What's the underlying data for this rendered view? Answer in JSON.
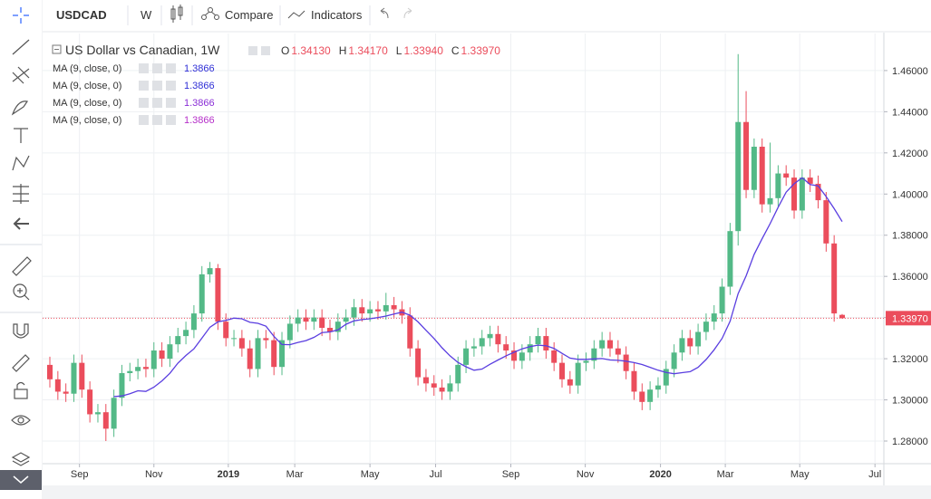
{
  "toolbar": {
    "symbol": "USDCAD",
    "interval": "W",
    "compare": "Compare",
    "indicators": "Indicators"
  },
  "chart_data": {
    "type": "candlestick",
    "title": "US Dollar vs Canadian, 1W",
    "ohlc_legend": [
      {
        "label": "O",
        "value": "1.34130"
      },
      {
        "label": "H",
        "value": "1.34170"
      },
      {
        "label": "L",
        "value": "1.33940"
      },
      {
        "label": "C",
        "value": "1.33970"
      }
    ],
    "indicators": [
      {
        "name": "MA (9, close, 0)",
        "value": "1.3866",
        "color": "#2e2ed6"
      },
      {
        "name": "MA (9, close, 0)",
        "value": "1.3866",
        "color": "#2e2ed6"
      },
      {
        "name": "MA (9, close, 0)",
        "value": "1.3866",
        "color": "#8a2ed6"
      },
      {
        "name": "MA (9, close, 0)",
        "value": "1.3866",
        "color": "#b52ec9"
      }
    ],
    "up_color": "#53b987",
    "down_color": "#eb4d5c",
    "ma_color": "#5a3ee0",
    "open": [
      1.317,
      1.31,
      1.304,
      1.303,
      1.318,
      1.305,
      1.293,
      1.294,
      1.286,
      1.301,
      1.313,
      1.314,
      1.316,
      1.315,
      1.324,
      1.32,
      1.327,
      1.331,
      1.334,
      1.342,
      1.361,
      1.364,
      1.338,
      1.33,
      1.33,
      1.325,
      1.315,
      1.33,
      1.329,
      1.316,
      1.329,
      1.337,
      1.34,
      1.338,
      1.34,
      1.335,
      1.333,
      1.338,
      1.34,
      1.345,
      1.342,
      1.344,
      1.343,
      1.346,
      1.344,
      1.341,
      1.325,
      1.311,
      1.308,
      1.306,
      1.304,
      1.308,
      1.317,
      1.325,
      1.326,
      1.33,
      1.332,
      1.327,
      1.324,
      1.319,
      1.323,
      1.327,
      1.331,
      1.324,
      1.318,
      1.31,
      1.307,
      1.318,
      1.319,
      1.325,
      1.329,
      1.325,
      1.322,
      1.314,
      1.304,
      1.299,
      1.305,
      1.307,
      1.315,
      1.323,
      1.33,
      1.326,
      1.333,
      1.338,
      1.342,
      1.355,
      1.382,
      1.435,
      1.402,
      1.423,
      1.395,
      1.398,
      1.41,
      1.408,
      1.392,
      1.408,
      1.405,
      1.397,
      1.376,
      1.3413
    ],
    "high": [
      1.321,
      1.314,
      1.308,
      1.322,
      1.322,
      1.309,
      1.298,
      1.298,
      1.305,
      1.317,
      1.318,
      1.32,
      1.32,
      1.328,
      1.328,
      1.331,
      1.335,
      1.338,
      1.346,
      1.365,
      1.367,
      1.366,
      1.342,
      1.334,
      1.334,
      1.329,
      1.334,
      1.334,
      1.333,
      1.333,
      1.341,
      1.344,
      1.344,
      1.344,
      1.344,
      1.339,
      1.342,
      1.344,
      1.349,
      1.349,
      1.348,
      1.348,
      1.352,
      1.35,
      1.348,
      1.345,
      1.329,
      1.315,
      1.312,
      1.31,
      1.312,
      1.321,
      1.329,
      1.33,
      1.334,
      1.336,
      1.336,
      1.331,
      1.328,
      1.327,
      1.331,
      1.335,
      1.335,
      1.328,
      1.322,
      1.314,
      1.322,
      1.323,
      1.329,
      1.333,
      1.333,
      1.329,
      1.326,
      1.318,
      1.308,
      1.309,
      1.311,
      1.319,
      1.327,
      1.334,
      1.334,
      1.337,
      1.342,
      1.346,
      1.359,
      1.386,
      1.468,
      1.45,
      1.427,
      1.427,
      1.425,
      1.414,
      1.414,
      1.412,
      1.412,
      1.412,
      1.409,
      1.401,
      1.38,
      1.3417
    ],
    "low": [
      1.306,
      1.3,
      1.299,
      1.299,
      1.301,
      1.289,
      1.289,
      1.28,
      1.282,
      1.297,
      1.309,
      1.31,
      1.311,
      1.311,
      1.316,
      1.316,
      1.323,
      1.327,
      1.33,
      1.338,
      1.357,
      1.334,
      1.326,
      1.326,
      1.321,
      1.311,
      1.311,
      1.325,
      1.312,
      1.312,
      1.325,
      1.333,
      1.334,
      1.334,
      1.331,
      1.329,
      1.329,
      1.334,
      1.336,
      1.338,
      1.338,
      1.339,
      1.339,
      1.34,
      1.337,
      1.321,
      1.307,
      1.304,
      1.302,
      1.3,
      1.3,
      1.304,
      1.313,
      1.321,
      1.322,
      1.326,
      1.323,
      1.32,
      1.315,
      1.315,
      1.319,
      1.323,
      1.32,
      1.314,
      1.306,
      1.303,
      1.303,
      1.314,
      1.315,
      1.321,
      1.321,
      1.318,
      1.31,
      1.3,
      1.295,
      1.295,
      1.301,
      1.303,
      1.311,
      1.319,
      1.322,
      1.322,
      1.329,
      1.334,
      1.338,
      1.351,
      1.375,
      1.398,
      1.398,
      1.391,
      1.391,
      1.394,
      1.404,
      1.388,
      1.388,
      1.401,
      1.393,
      1.372,
      1.338,
      1.3394
    ],
    "close": [
      1.31,
      1.304,
      1.303,
      1.318,
      1.305,
      1.293,
      1.294,
      1.286,
      1.301,
      1.313,
      1.314,
      1.316,
      1.315,
      1.324,
      1.32,
      1.327,
      1.331,
      1.334,
      1.342,
      1.361,
      1.364,
      1.338,
      1.33,
      1.33,
      1.325,
      1.315,
      1.33,
      1.329,
      1.316,
      1.329,
      1.337,
      1.34,
      1.338,
      1.34,
      1.335,
      1.333,
      1.338,
      1.34,
      1.345,
      1.342,
      1.344,
      1.343,
      1.346,
      1.344,
      1.341,
      1.325,
      1.311,
      1.308,
      1.306,
      1.304,
      1.308,
      1.317,
      1.325,
      1.326,
      1.33,
      1.332,
      1.327,
      1.324,
      1.319,
      1.323,
      1.327,
      1.331,
      1.324,
      1.318,
      1.31,
      1.307,
      1.318,
      1.319,
      1.325,
      1.329,
      1.325,
      1.322,
      1.314,
      1.304,
      1.299,
      1.305,
      1.307,
      1.315,
      1.323,
      1.33,
      1.326,
      1.333,
      1.338,
      1.342,
      1.355,
      1.382,
      1.435,
      1.402,
      1.423,
      1.395,
      1.398,
      1.41,
      1.408,
      1.392,
      1.408,
      1.405,
      1.397,
      1.376,
      1.342,
      1.3397
    ],
    "ma": [
      null,
      null,
      null,
      null,
      null,
      null,
      null,
      null,
      1.3016,
      1.3019,
      1.303,
      1.3044,
      1.3041,
      1.3062,
      1.3092,
      1.3129,
      1.3179,
      1.3216,
      1.3248,
      1.33,
      1.3353,
      1.3379,
      1.3386,
      1.3397,
      1.3394,
      1.3377,
      1.3372,
      1.3358,
      1.3308,
      1.3269,
      1.3268,
      1.3279,
      1.3288,
      1.3304,
      1.3327,
      1.333,
      1.334,
      1.3367,
      1.3384,
      1.339,
      1.3394,
      1.34,
      1.3407,
      1.3417,
      1.3426,
      1.3411,
      1.3379,
      1.3338,
      1.3298,
      1.3253,
      1.3214,
      1.3182,
      1.3161,
      1.3144,
      1.315,
      1.3173,
      1.3194,
      1.3214,
      1.3231,
      1.3248,
      1.3259,
      1.3266,
      1.3263,
      1.325,
      1.3226,
      1.3203,
      1.3197,
      1.3197,
      1.3199,
      1.3201,
      1.3194,
      1.3192,
      1.3188,
      1.3181,
      1.3172,
      1.3158,
      1.3144,
      1.3133,
      1.3127,
      1.3132,
      1.3137,
      1.3158,
      1.3196,
      1.3243,
      1.3299,
      1.3382,
      1.3516,
      1.3603,
      1.3707,
      1.3783,
      1.3856,
      1.3936,
      1.4009,
      1.405,
      1.4079,
      1.4046,
      1.404,
      1.3988,
      1.3929,
      1.3866
    ],
    "price_line": {
      "value": 1.3397,
      "label": "1.33970"
    },
    "ylim": [
      1.269,
      1.478
    ],
    "yticks": [
      {
        "value": 1.28,
        "label": "1.28000"
      },
      {
        "value": 1.3,
        "label": "1.30000"
      },
      {
        "value": 1.32,
        "label": "1.32000"
      },
      {
        "value": 1.34,
        "label": "1.34000"
      },
      {
        "value": 1.36,
        "label": "1.36000"
      },
      {
        "value": 1.38,
        "label": "1.38000"
      },
      {
        "value": 1.4,
        "label": "1.40000"
      },
      {
        "value": 1.42,
        "label": "1.42000"
      },
      {
        "value": 1.44,
        "label": "1.44000"
      },
      {
        "value": 1.46,
        "label": "1.46000"
      }
    ],
    "xticks": [
      {
        "value": 3.7,
        "label": "Sep"
      },
      {
        "value": 13.0,
        "label": "Nov"
      },
      {
        "value": 22.3,
        "label": "2019"
      },
      {
        "value": 30.6,
        "label": "Mar"
      },
      {
        "value": 40.0,
        "label": "May"
      },
      {
        "value": 48.2,
        "label": "Jul"
      },
      {
        "value": 57.6,
        "label": "Sep"
      },
      {
        "value": 66.9,
        "label": "Nov"
      },
      {
        "value": 76.3,
        "label": "2020"
      },
      {
        "value": 84.4,
        "label": "Mar"
      },
      {
        "value": 93.7,
        "label": "May"
      },
      {
        "value": 103.1,
        "label": "Jul"
      }
    ],
    "grid": true
  }
}
